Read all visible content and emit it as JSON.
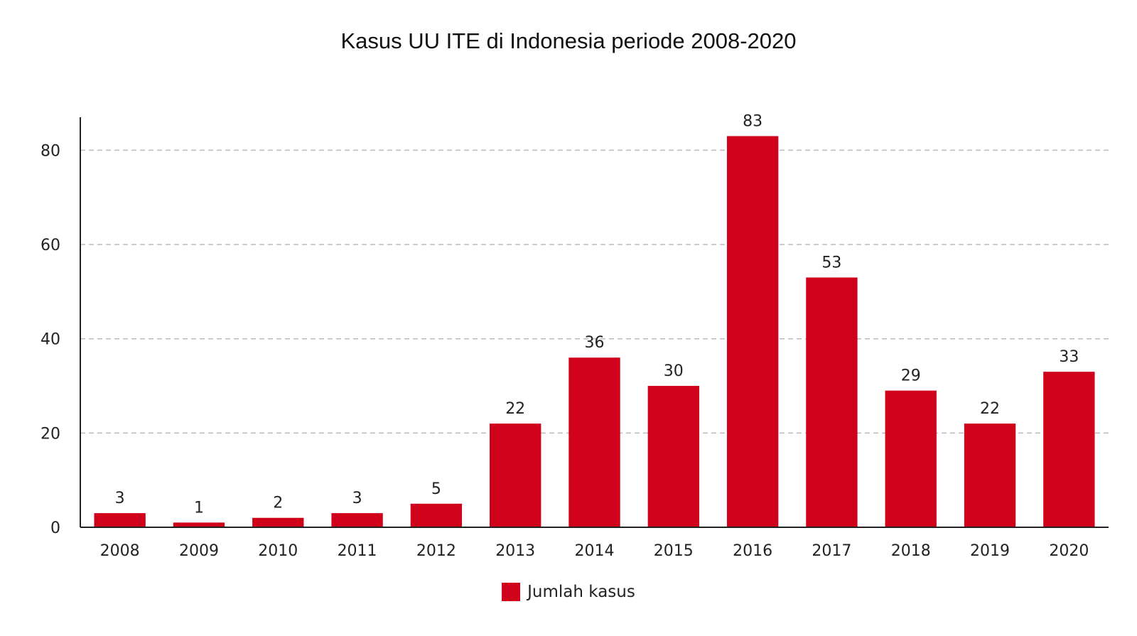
{
  "chart_data": {
    "type": "bar",
    "title": "Kasus UU ITE di Indonesia periode 2008-2020",
    "categories": [
      "2008",
      "2009",
      "2010",
      "2011",
      "2012",
      "2013",
      "2014",
      "2015",
      "2016",
      "2017",
      "2018",
      "2019",
      "2020"
    ],
    "series": [
      {
        "name": "Jumlah kasus",
        "values": [
          3,
          1,
          2,
          3,
          5,
          22,
          36,
          30,
          83,
          53,
          29,
          22,
          33
        ],
        "color": "#d0021b"
      }
    ],
    "xlabel": "",
    "ylabel": "",
    "ylim": [
      0,
      87
    ],
    "yticks": [
      0,
      20,
      40,
      60,
      80
    ],
    "grid": "horizontal-dashed",
    "legend_position": "bottom-center",
    "data_labels": true
  }
}
